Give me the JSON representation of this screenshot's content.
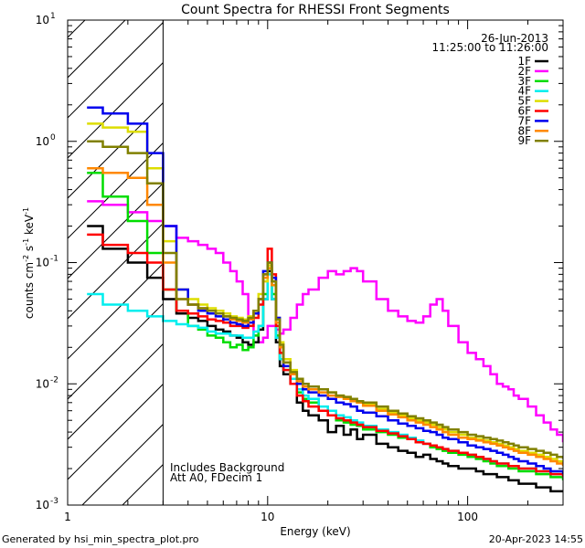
{
  "chart_data": {
    "type": "line",
    "scale": {
      "x": "log",
      "y": "log"
    },
    "title": "Count Spectra for RHESSI Front Segments",
    "xlabel": "Energy (keV)",
    "ylabel": {
      "base": "counts cm",
      "exp1": "-2",
      "mid": " s",
      "exp2": "-1",
      "end": " keV",
      "exp3": "-1"
    },
    "xlim": [
      1,
      300
    ],
    "ylim": [
      0.001,
      10
    ],
    "x_ticks": [
      {
        "value": 1,
        "label": "1"
      },
      {
        "value": 10,
        "label": "10"
      },
      {
        "value": 100,
        "label": "100"
      }
    ],
    "y_ticks": [
      {
        "value": 0.001,
        "base": "10",
        "exp": "-3"
      },
      {
        "value": 0.01,
        "base": "10",
        "exp": "-2"
      },
      {
        "value": 0.1,
        "base": "10",
        "exp": "-1"
      },
      {
        "value": 1,
        "base": "10",
        "exp": "0"
      },
      {
        "value": 10,
        "base": "10",
        "exp": "1"
      }
    ],
    "hatched_region": {
      "x_from": 1,
      "x_to": 3
    },
    "info": {
      "date": "26-Jun-2013",
      "time_range": "11:25:00 to 11:26:00"
    },
    "notes": [
      "Includes Background",
      "Att A0, FDecim 1"
    ],
    "series": [
      {
        "name": "1F",
        "color": "#000000"
      },
      {
        "name": "2F",
        "color": "#ff00ff"
      },
      {
        "name": "3F",
        "color": "#00dd00"
      },
      {
        "name": "4F",
        "color": "#00eeee"
      },
      {
        "name": "5F",
        "color": "#dddd00"
      },
      {
        "name": "6F",
        "color": "#ff0000"
      },
      {
        "name": "7F",
        "color": "#0000ee"
      },
      {
        "name": "8F",
        "color": "#ff8800"
      },
      {
        "name": "9F",
        "color": "#808000"
      }
    ],
    "spectra": {
      "energies": [
        1.25,
        1.5,
        2.0,
        2.5,
        3.0,
        3.5,
        4.0,
        4.5,
        5.0,
        5.5,
        6.0,
        6.5,
        7.0,
        7.5,
        8.0,
        8.5,
        9.0,
        9.5,
        10.0,
        10.5,
        11.0,
        11.5,
        12.0,
        13.0,
        14.0,
        15.0,
        16.0,
        18.0,
        20.0,
        22.0,
        24.0,
        26.0,
        28.0,
        30.0,
        35.0,
        40.0,
        45.0,
        50.0,
        55.0,
        60.0,
        65.0,
        70.0,
        75.0,
        80.0,
        90.0,
        100.0,
        110.0,
        120.0,
        130.0,
        140.0,
        150.0,
        160.0,
        170.0,
        180.0,
        200.0,
        220.0,
        240.0,
        260.0,
        280.0,
        300.0
      ],
      "2F": [
        0.32,
        0.3,
        0.26,
        0.22,
        0.2,
        0.16,
        0.15,
        0.14,
        0.13,
        0.12,
        0.1,
        0.085,
        0.07,
        0.055,
        0.035,
        0.025,
        0.022,
        0.024,
        0.03,
        0.03,
        0.028,
        0.026,
        0.028,
        0.035,
        0.045,
        0.055,
        0.06,
        0.075,
        0.085,
        0.08,
        0.085,
        0.09,
        0.085,
        0.07,
        0.05,
        0.04,
        0.036,
        0.033,
        0.032,
        0.036,
        0.045,
        0.05,
        0.04,
        0.03,
        0.022,
        0.018,
        0.016,
        0.014,
        0.012,
        0.01,
        0.0095,
        0.009,
        0.008,
        0.0075,
        0.0065,
        0.0055,
        0.0048,
        0.0042,
        0.0038,
        0.0033
      ],
      "1F": [
        0.2,
        0.13,
        0.1,
        0.075,
        0.05,
        0.038,
        0.035,
        0.033,
        0.03,
        0.028,
        0.027,
        0.025,
        0.024,
        0.022,
        0.021,
        0.022,
        0.028,
        0.05,
        0.085,
        0.05,
        0.022,
        0.014,
        0.012,
        0.01,
        0.007,
        0.006,
        0.0055,
        0.005,
        0.004,
        0.0045,
        0.0038,
        0.0042,
        0.0035,
        0.0038,
        0.0032,
        0.003,
        0.0028,
        0.0027,
        0.0025,
        0.0026,
        0.0024,
        0.0023,
        0.0022,
        0.0021,
        0.002,
        0.002,
        0.0019,
        0.0018,
        0.0018,
        0.0017,
        0.0017,
        0.0016,
        0.0016,
        0.0015,
        0.0015,
        0.0014,
        0.0014,
        0.0013,
        0.0013,
        0.0013
      ],
      "3F": [
        0.55,
        0.35,
        0.22,
        0.12,
        0.06,
        0.04,
        0.03,
        0.028,
        0.025,
        0.024,
        0.022,
        0.02,
        0.021,
        0.019,
        0.02,
        0.025,
        0.03,
        0.055,
        0.09,
        0.055,
        0.025,
        0.016,
        0.013,
        0.011,
        0.0085,
        0.0075,
        0.007,
        0.006,
        0.0055,
        0.005,
        0.0048,
        0.0046,
        0.0045,
        0.0042,
        0.004,
        0.0038,
        0.0036,
        0.0035,
        0.0033,
        0.0032,
        0.003,
        0.0029,
        0.0028,
        0.0027,
        0.0026,
        0.0025,
        0.0024,
        0.0023,
        0.0022,
        0.0021,
        0.0021,
        0.002,
        0.002,
        0.0019,
        0.0019,
        0.0018,
        0.0018,
        0.0017,
        0.0017,
        0.0016
      ],
      "4F": [
        0.055,
        0.045,
        0.04,
        0.036,
        0.033,
        0.031,
        0.03,
        0.029,
        0.027,
        0.026,
        0.026,
        0.025,
        0.025,
        0.024,
        0.024,
        0.027,
        0.03,
        0.05,
        0.08,
        0.05,
        0.024,
        0.016,
        0.013,
        0.011,
        0.009,
        0.008,
        0.0075,
        0.0065,
        0.006,
        0.0055,
        0.0053,
        0.005,
        0.0048,
        0.0045,
        0.0042,
        0.004,
        0.0038,
        0.0036,
        0.0034,
        0.0032,
        0.0031,
        0.003,
        0.0029,
        0.0028,
        0.0027,
        0.0026,
        0.0025,
        0.0024,
        0.0023,
        0.0022,
        0.0022,
        0.0021,
        0.0021,
        0.002,
        0.002,
        0.0019,
        0.0019,
        0.0018,
        0.0018,
        0.0017
      ],
      "5F": [
        1.4,
        1.3,
        1.2,
        0.6,
        0.15,
        0.06,
        0.05,
        0.045,
        0.042,
        0.04,
        0.038,
        0.036,
        0.035,
        0.034,
        0.036,
        0.04,
        0.055,
        0.07,
        0.095,
        0.07,
        0.035,
        0.022,
        0.016,
        0.013,
        0.011,
        0.01,
        0.0095,
        0.009,
        0.0085,
        0.008,
        0.0078,
        0.0075,
        0.007,
        0.0068,
        0.0062,
        0.0058,
        0.0055,
        0.0052,
        0.005,
        0.0048,
        0.0046,
        0.0044,
        0.0042,
        0.004,
        0.0038,
        0.0036,
        0.0035,
        0.0034,
        0.0033,
        0.0032,
        0.0031,
        0.003,
        0.0029,
        0.0028,
        0.0027,
        0.0026,
        0.0025,
        0.0024,
        0.0023,
        0.0022
      ],
      "6F": [
        0.17,
        0.14,
        0.12,
        0.1,
        0.06,
        0.04,
        0.038,
        0.036,
        0.034,
        0.033,
        0.032,
        0.03,
        0.03,
        0.029,
        0.03,
        0.035,
        0.045,
        0.08,
        0.13,
        0.08,
        0.03,
        0.018,
        0.013,
        0.01,
        0.008,
        0.0072,
        0.0065,
        0.006,
        0.0055,
        0.0052,
        0.005,
        0.0048,
        0.0046,
        0.0044,
        0.0041,
        0.0039,
        0.0037,
        0.0035,
        0.0033,
        0.0032,
        0.0031,
        0.003,
        0.0029,
        0.0028,
        0.0027,
        0.0026,
        0.0025,
        0.0024,
        0.0023,
        0.0022,
        0.0022,
        0.0021,
        0.0021,
        0.002,
        0.002,
        0.0019,
        0.0019,
        0.0018,
        0.0018,
        0.0017
      ],
      "7F": [
        1.9,
        1.7,
        1.4,
        0.8,
        0.2,
        0.06,
        0.045,
        0.04,
        0.038,
        0.036,
        0.034,
        0.032,
        0.031,
        0.03,
        0.032,
        0.038,
        0.05,
        0.085,
        0.1,
        0.075,
        0.035,
        0.02,
        0.014,
        0.012,
        0.01,
        0.009,
        0.0085,
        0.008,
        0.0075,
        0.007,
        0.0068,
        0.0065,
        0.006,
        0.0058,
        0.0054,
        0.005,
        0.0047,
        0.0045,
        0.0043,
        0.0041,
        0.004,
        0.0038,
        0.0036,
        0.0035,
        0.0033,
        0.0031,
        0.003,
        0.0029,
        0.0028,
        0.0027,
        0.0026,
        0.0025,
        0.0024,
        0.0023,
        0.0022,
        0.0021,
        0.002,
        0.0019,
        0.0019,
        0.0018
      ],
      "8F": [
        0.6,
        0.55,
        0.5,
        0.3,
        0.1,
        0.05,
        0.045,
        0.042,
        0.04,
        0.038,
        0.036,
        0.034,
        0.033,
        0.032,
        0.034,
        0.04,
        0.05,
        0.075,
        0.09,
        0.065,
        0.032,
        0.02,
        0.015,
        0.012,
        0.0105,
        0.0095,
        0.009,
        0.0085,
        0.008,
        0.0078,
        0.0075,
        0.0072,
        0.007,
        0.0066,
        0.006,
        0.0056,
        0.0053,
        0.005,
        0.0048,
        0.0046,
        0.0044,
        0.0042,
        0.004,
        0.0038,
        0.0036,
        0.0035,
        0.0034,
        0.0033,
        0.0032,
        0.0031,
        0.003,
        0.0029,
        0.0028,
        0.0027,
        0.0026,
        0.0025,
        0.0024,
        0.0023,
        0.0022,
        0.0021
      ],
      "9F": [
        1.0,
        0.9,
        0.8,
        0.45,
        0.12,
        0.05,
        0.045,
        0.042,
        0.04,
        0.038,
        0.036,
        0.035,
        0.034,
        0.033,
        0.035,
        0.04,
        0.05,
        0.08,
        0.1,
        0.07,
        0.034,
        0.021,
        0.015,
        0.0125,
        0.011,
        0.01,
        0.0095,
        0.009,
        0.0085,
        0.008,
        0.0078,
        0.0075,
        0.0072,
        0.007,
        0.0065,
        0.006,
        0.0057,
        0.0054,
        0.0052,
        0.005,
        0.0048,
        0.0046,
        0.0044,
        0.0042,
        0.004,
        0.0038,
        0.0037,
        0.0036,
        0.0035,
        0.0034,
        0.0033,
        0.0032,
        0.0031,
        0.003,
        0.0029,
        0.0028,
        0.0027,
        0.0026,
        0.0025,
        0.0024
      ]
    }
  },
  "footer": {
    "generated": "Generated by hsi_min_spectra_plot.pro",
    "timestamp": "20-Apr-2023 14:55"
  }
}
